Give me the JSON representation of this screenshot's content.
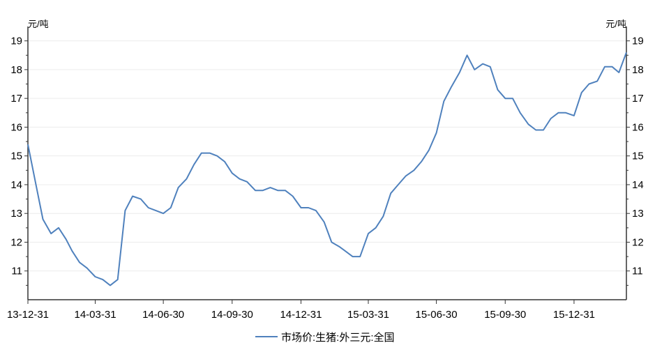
{
  "chart_data": {
    "type": "line",
    "unit_left": "元/吨",
    "unit_right": "元/吨",
    "x_tick_labels": [
      "13-12-31",
      "14-03-31",
      "14-06-30",
      "14-09-30",
      "14-12-31",
      "15-03-31",
      "15-06-30",
      "15-09-30",
      "15-12-31"
    ],
    "y_tick_labels": [
      "11",
      "12",
      "13",
      "14",
      "15",
      "16",
      "17",
      "18",
      "19"
    ],
    "ylim": [
      10,
      19.5
    ],
    "grid": "horizontal",
    "legend_position": "bottom-center",
    "line_color": "#4f81bd",
    "series": [
      {
        "name": "市场价:生猪:外三元:全国",
        "x": [
          "2013-12-31",
          "2014-01-10",
          "2014-01-20",
          "2014-01-31",
          "2014-02-10",
          "2014-02-20",
          "2014-02-28",
          "2014-03-10",
          "2014-03-20",
          "2014-03-31",
          "2014-04-10",
          "2014-04-20",
          "2014-04-30",
          "2014-05-10",
          "2014-05-20",
          "2014-05-31",
          "2014-06-10",
          "2014-06-20",
          "2014-06-30",
          "2014-07-10",
          "2014-07-20",
          "2014-07-31",
          "2014-08-10",
          "2014-08-20",
          "2014-08-31",
          "2014-09-10",
          "2014-09-20",
          "2014-09-30",
          "2014-10-10",
          "2014-10-20",
          "2014-10-31",
          "2014-11-10",
          "2014-11-20",
          "2014-11-30",
          "2014-12-10",
          "2014-12-20",
          "2014-12-31",
          "2015-01-10",
          "2015-01-20",
          "2015-01-31",
          "2015-02-10",
          "2015-02-20",
          "2015-02-28",
          "2015-03-10",
          "2015-03-20",
          "2015-03-31",
          "2015-04-10",
          "2015-04-20",
          "2015-04-30",
          "2015-05-10",
          "2015-05-20",
          "2015-05-31",
          "2015-06-10",
          "2015-06-20",
          "2015-06-30",
          "2015-07-10",
          "2015-07-20",
          "2015-07-31",
          "2015-08-10",
          "2015-08-20",
          "2015-08-31",
          "2015-09-10",
          "2015-09-20",
          "2015-09-30",
          "2015-10-10",
          "2015-10-20",
          "2015-10-31",
          "2015-11-10",
          "2015-11-20",
          "2015-11-30",
          "2015-12-10",
          "2015-12-20",
          "2015-12-31",
          "2016-01-10",
          "2016-01-20",
          "2016-01-31",
          "2016-02-10",
          "2016-02-20",
          "2016-02-29",
          "2016-03-10"
        ],
        "values": [
          15.4,
          14.1,
          12.8,
          12.3,
          12.5,
          12.1,
          11.7,
          11.3,
          11.1,
          10.8,
          10.7,
          10.5,
          10.7,
          13.1,
          13.6,
          13.5,
          13.2,
          13.1,
          13.0,
          13.2,
          13.9,
          14.2,
          14.7,
          15.1,
          15.1,
          15.0,
          14.8,
          14.4,
          14.2,
          14.1,
          13.8,
          13.8,
          13.9,
          13.8,
          13.8,
          13.6,
          13.2,
          13.2,
          13.1,
          12.7,
          12.0,
          11.85,
          11.7,
          11.5,
          11.5,
          12.3,
          12.5,
          12.9,
          13.7,
          14.0,
          14.3,
          14.5,
          14.8,
          15.2,
          15.8,
          16.9,
          17.4,
          17.9,
          18.5,
          18.0,
          18.2,
          18.1,
          17.3,
          17.0,
          17.0,
          16.5,
          16.1,
          15.9,
          15.9,
          16.3,
          16.5,
          16.5,
          16.4,
          17.2,
          17.5,
          17.6,
          18.1,
          18.1,
          17.9,
          18.6
        ]
      }
    ]
  }
}
